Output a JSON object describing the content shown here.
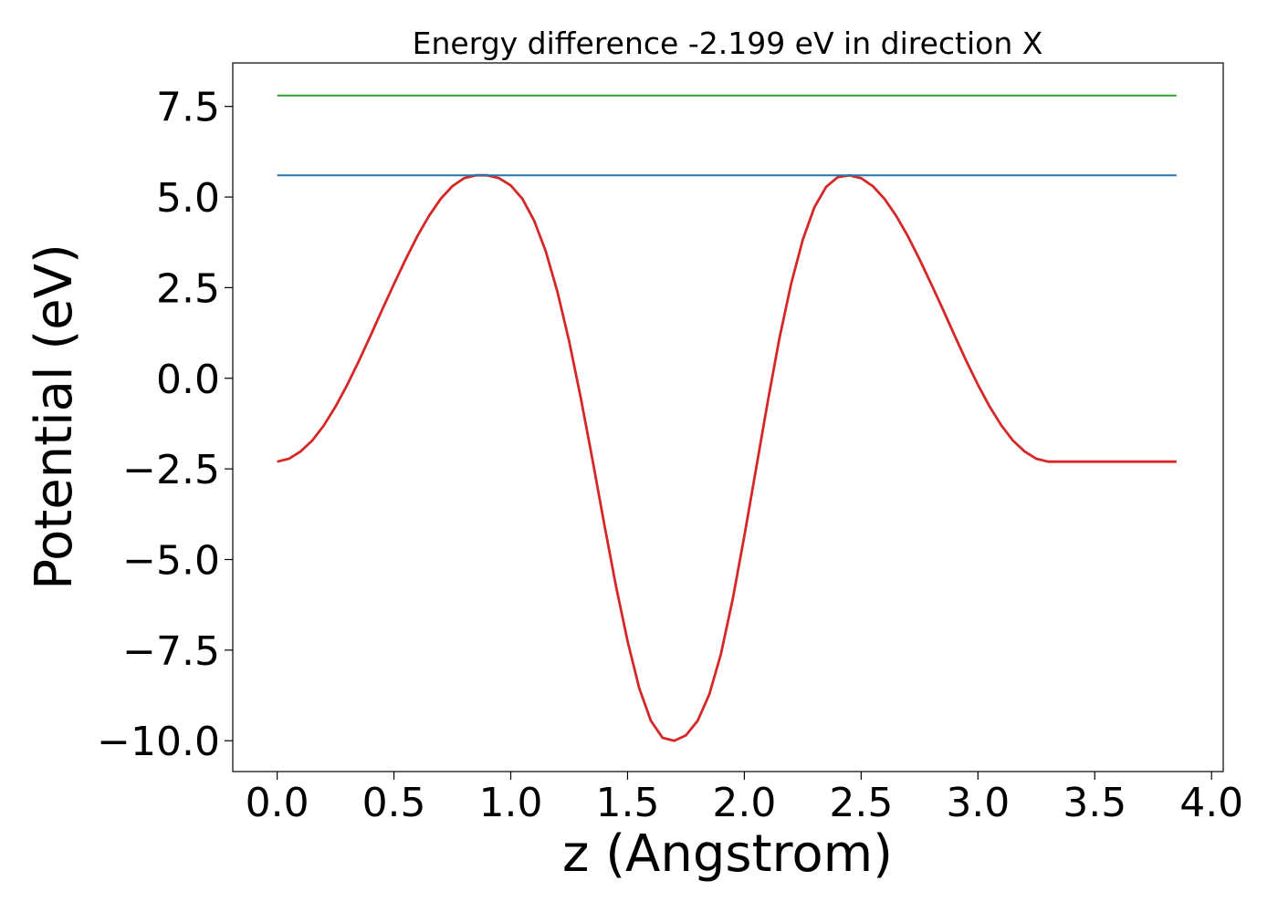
{
  "chart_data": {
    "type": "line",
    "title": "Energy difference -2.199 eV in direction X",
    "xlabel": "z (Angstrom)",
    "ylabel": "Potential (eV)",
    "xlim": [
      -0.19,
      4.05
    ],
    "ylim": [
      -10.85,
      8.7
    ],
    "grid": false,
    "xticks": [
      0.0,
      0.5,
      1.0,
      1.5,
      2.0,
      2.5,
      3.0,
      3.5,
      4.0
    ],
    "yticks": [
      7.5,
      5.0,
      2.5,
      0.0,
      -2.5,
      -5.0,
      -7.5,
      -10.0
    ],
    "xtick_labels": [
      "0.0",
      "0.5",
      "1.0",
      "1.5",
      "2.0",
      "2.5",
      "3.0",
      "3.5",
      "4.0"
    ],
    "ytick_labels": [
      "7.5",
      "5.0",
      "2.5",
      "0.0",
      "−2.5",
      "−5.0",
      "−7.5",
      "−10.0"
    ],
    "series": [
      {
        "color": "#d62728",
        "style": "curve",
        "x": [
          0.0,
          0.05,
          0.1,
          0.15,
          0.2,
          0.25,
          0.3,
          0.35,
          0.4,
          0.45,
          0.5,
          0.55,
          0.6,
          0.65,
          0.7,
          0.75,
          0.8,
          0.85,
          0.9,
          0.95,
          1.0,
          1.05,
          1.1,
          1.15,
          1.2,
          1.25,
          1.3,
          1.35,
          1.4,
          1.45,
          1.5,
          1.55,
          1.6,
          1.65,
          1.7,
          1.75,
          1.8,
          1.85,
          1.9,
          1.95,
          2.0,
          2.05,
          2.1,
          2.15,
          2.2,
          2.25,
          2.3,
          2.35,
          2.4,
          2.45,
          2.5,
          2.55,
          2.6,
          2.65,
          2.7,
          2.75,
          2.8,
          2.85,
          2.9,
          2.95,
          3.0,
          3.05,
          3.1,
          3.15,
          3.2,
          3.25,
          3.3,
          3.35,
          3.4,
          3.45,
          3.5,
          3.55,
          3.6,
          3.65,
          3.7,
          3.75,
          3.8,
          3.85
        ],
        "values": [
          -2.3,
          -2.22,
          -2.02,
          -1.72,
          -1.3,
          -0.78,
          -0.18,
          0.48,
          1.18,
          1.9,
          2.6,
          3.28,
          3.92,
          4.48,
          4.95,
          5.3,
          5.52,
          5.6,
          5.6,
          5.52,
          5.32,
          4.95,
          4.35,
          3.5,
          2.38,
          1.02,
          -0.55,
          -2.25,
          -4.02,
          -5.72,
          -7.25,
          -8.55,
          -9.45,
          -9.92,
          -10.0,
          -9.85,
          -9.45,
          -8.72,
          -7.6,
          -6.1,
          -4.35,
          -2.5,
          -0.65,
          1.1,
          2.6,
          3.82,
          4.72,
          5.28,
          5.55,
          5.6,
          5.52,
          5.3,
          4.95,
          4.48,
          3.92,
          3.28,
          2.6,
          1.9,
          1.18,
          0.48,
          -0.18,
          -0.78,
          -1.3,
          -1.72,
          -2.02,
          -2.22,
          -2.3,
          -2.3,
          -2.3,
          -2.3,
          -2.3,
          -2.3,
          -2.3,
          -2.3,
          -2.3,
          -2.3,
          -2.3,
          -2.3
        ]
      },
      {
        "color": "#1f77b4",
        "style": "flat",
        "x": [
          0.0,
          3.85
        ],
        "values": [
          5.6,
          5.6
        ]
      },
      {
        "color": "#2ca02c",
        "style": "flat",
        "x": [
          0.0,
          3.85
        ],
        "values": [
          7.8,
          7.8
        ]
      }
    ]
  }
}
